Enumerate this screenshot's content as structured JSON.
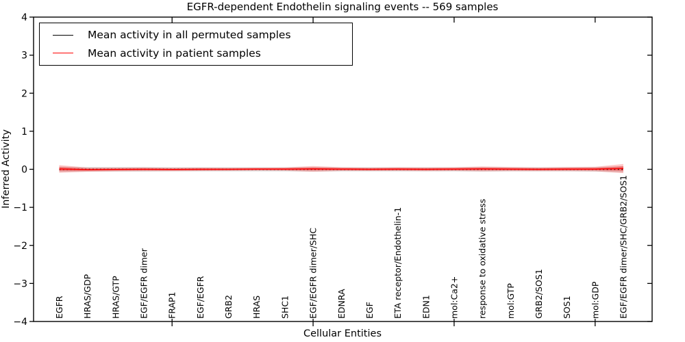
{
  "figure": {
    "title": "EGFR-dependent Endothelin signaling events -- 569 samples",
    "background": "#ffffff",
    "axis_color": "#000000"
  },
  "legend": {
    "position": "upper left",
    "entries": [
      {
        "label": "Mean activity in all permuted samples",
        "color": "#000000"
      },
      {
        "label": "Mean activity in patient samples",
        "color": "#ff0000"
      }
    ]
  },
  "chart_data": {
    "type": "line",
    "title": "EGFR-dependent Endothelin signaling events -- 569 samples",
    "xlabel": "Cellular Entities",
    "ylabel": "Inferred Activity",
    "ylim": [
      -4,
      4
    ],
    "yticks": [
      4,
      3,
      2,
      1,
      0,
      -1,
      -2,
      -3,
      -4
    ],
    "grid": false,
    "legend_position": "upper left",
    "categories": [
      "EGFR",
      "HRAS/GDP",
      "HRAS/GTP",
      "EGF/EGFR dimer",
      "FRAP1",
      "EGF/EGFR",
      "GRB2",
      "HRAS",
      "SHC1",
      "EGF/EGFR dimer/SHC",
      "EDNRA",
      "EGF",
      "ETA receptor/Endothelin-1",
      "EDN1",
      "mol:Ca2+",
      "response to oxidative stress",
      "mol:GTP",
      "GRB2/SOS1",
      "SOS1",
      "mol:GDP",
      "EGF/EGFR dimer/SHC/GRB2/SOS1"
    ],
    "xtick_marker_indices": [
      4,
      9,
      14,
      19
    ],
    "series": [
      {
        "name": "Mean activity in all permuted samples",
        "color": "#000000",
        "line_style": "dotted",
        "values": [
          0,
          0,
          0,
          0,
          0,
          0,
          0,
          0,
          0,
          0,
          0,
          0,
          0,
          0,
          0,
          0,
          0,
          0,
          0,
          0,
          0
        ],
        "band_halfwidth": [
          0.07,
          0.06,
          0.06,
          0.06,
          0.055,
          0.055,
          0.055,
          0.055,
          0.055,
          0.06,
          0.055,
          0.055,
          0.055,
          0.055,
          0.055,
          0.06,
          0.055,
          0.055,
          0.055,
          0.06,
          0.08
        ],
        "band_color": "#000000",
        "band_opacity": 0.13
      },
      {
        "name": "Mean activity in patient samples",
        "color": "#ff0000",
        "line_style": "solid",
        "values": [
          0.01,
          -0.01,
          -0.005,
          0,
          -0.005,
          0,
          0,
          0.005,
          0.005,
          0.01,
          0.005,
          0,
          0.005,
          0,
          0.005,
          0.01,
          0.005,
          0,
          0.005,
          0.005,
          0.02
        ],
        "band_halfwidth": [
          0.1,
          0.055,
          0.05,
          0.05,
          0.045,
          0.045,
          0.04,
          0.04,
          0.045,
          0.075,
          0.05,
          0.045,
          0.05,
          0.05,
          0.05,
          0.065,
          0.055,
          0.05,
          0.055,
          0.06,
          0.12
        ],
        "band_color": "#ff0000",
        "band_opacity": 0.22
      }
    ]
  }
}
